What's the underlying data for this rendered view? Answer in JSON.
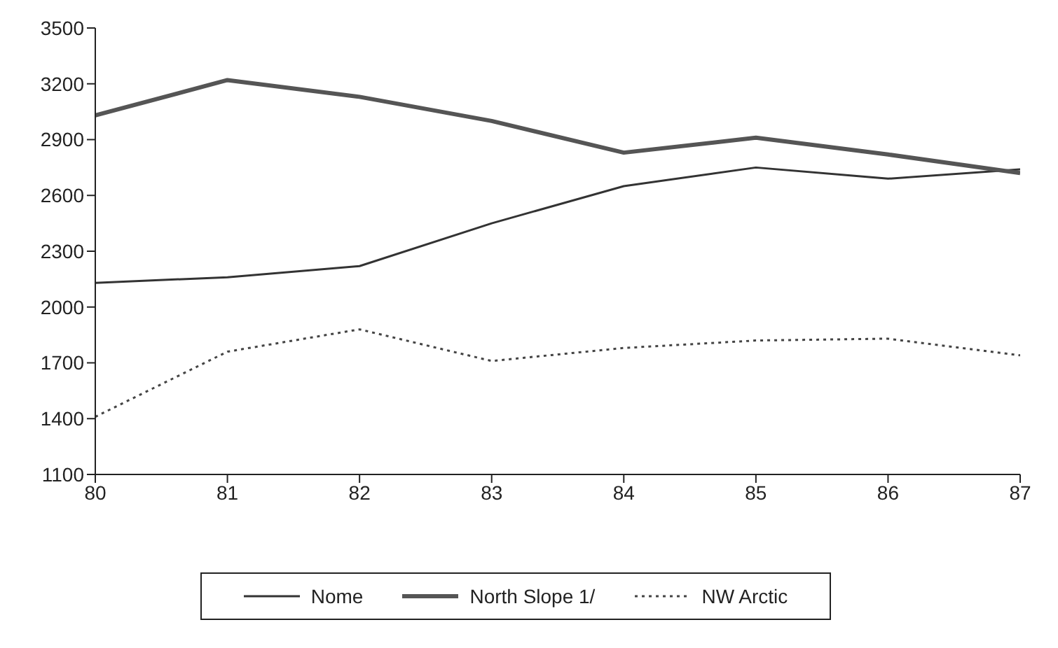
{
  "chart_data": {
    "type": "line",
    "x": [
      80,
      81,
      82,
      83,
      84,
      85,
      86,
      87
    ],
    "xlim": [
      80,
      87
    ],
    "xticks": [
      80,
      81,
      82,
      83,
      84,
      85,
      86,
      87
    ],
    "ylim": [
      1100,
      3500
    ],
    "yticks": [
      1100,
      1400,
      1700,
      2000,
      2300,
      2600,
      2900,
      3200,
      3500
    ],
    "grid": false,
    "legend": "bottom",
    "marker": "none",
    "series": [
      {
        "name": "Nome",
        "color": "#333333",
        "line_style": "solid",
        "values": [
          2130,
          2160,
          2220,
          2450,
          2650,
          2750,
          2690,
          2740
        ]
      },
      {
        "name": "North Slope 1/",
        "color": "#555555",
        "line_style": "solid",
        "values": [
          3030,
          3220,
          3130,
          3000,
          2830,
          2910,
          2820,
          2720
        ]
      },
      {
        "name": "NW Arctic",
        "color": "#444444",
        "line_style": "dotted",
        "values": [
          1410,
          1760,
          1880,
          1710,
          1780,
          1820,
          1830,
          1740
        ]
      }
    ]
  }
}
